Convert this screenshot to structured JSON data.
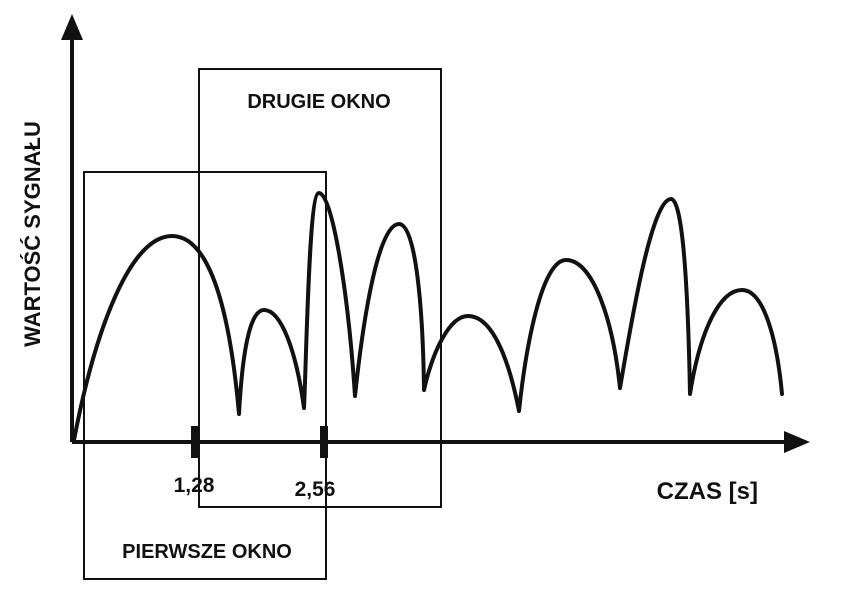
{
  "labels": {
    "y_axis": "WARTOŚĆ SYGNAŁU",
    "x_axis": "CZAS [s]",
    "first_window": "PIERWSZE OKNO",
    "second_window": "DRUGIE OKNO",
    "tick_1": "1,28",
    "tick_2": "2,56"
  },
  "colors": {
    "ink": "#111111",
    "background": "#ffffff"
  }
}
